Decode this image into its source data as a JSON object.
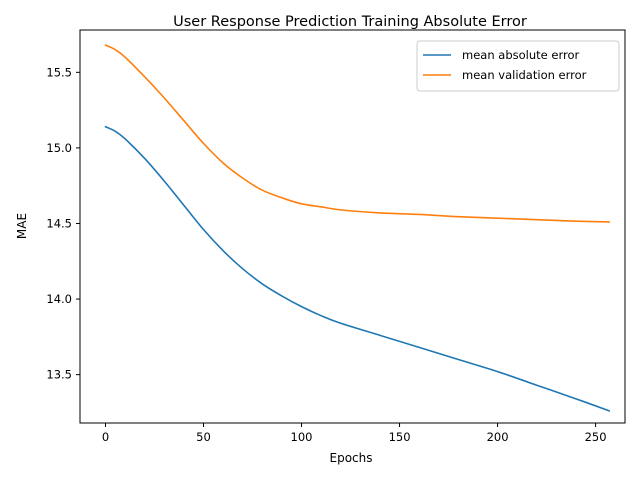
{
  "chart_data": {
    "type": "line",
    "title": "User Response Prediction Training Absolute Error",
    "xlabel": "Epochs",
    "ylabel": "MAE",
    "xlim": [
      -13,
      265
    ],
    "ylim": [
      13.18,
      15.78
    ],
    "xticks": [
      0,
      50,
      100,
      150,
      200,
      250
    ],
    "yticks": [
      13.5,
      14.0,
      14.5,
      15.0,
      15.5
    ],
    "ytick_labels": [
      "13.5",
      "14.0",
      "14.5",
      "15.0",
      "15.5"
    ],
    "grid": false,
    "legend_location": "top-right",
    "series": [
      {
        "name": "mean absolute error",
        "color": "#1f77b4",
        "x": [
          0,
          5,
          10,
          20,
          30,
          40,
          50,
          60,
          70,
          80,
          90,
          100,
          110,
          120,
          140,
          160,
          180,
          200,
          220,
          240,
          257
        ],
        "y": [
          15.14,
          15.11,
          15.06,
          14.93,
          14.78,
          14.62,
          14.46,
          14.32,
          14.2,
          14.1,
          14.02,
          13.95,
          13.89,
          13.84,
          13.76,
          13.68,
          13.6,
          13.52,
          13.43,
          13.34,
          13.26
        ]
      },
      {
        "name": "mean validation error",
        "color": "#ff7f0e",
        "x": [
          0,
          5,
          10,
          20,
          30,
          40,
          50,
          60,
          70,
          80,
          90,
          100,
          110,
          120,
          140,
          160,
          180,
          200,
          220,
          240,
          257
        ],
        "y": [
          15.68,
          15.65,
          15.6,
          15.47,
          15.33,
          15.18,
          15.03,
          14.9,
          14.8,
          14.72,
          14.67,
          14.63,
          14.61,
          14.59,
          14.57,
          14.56,
          14.545,
          14.535,
          14.525,
          14.515,
          14.51
        ]
      }
    ]
  }
}
